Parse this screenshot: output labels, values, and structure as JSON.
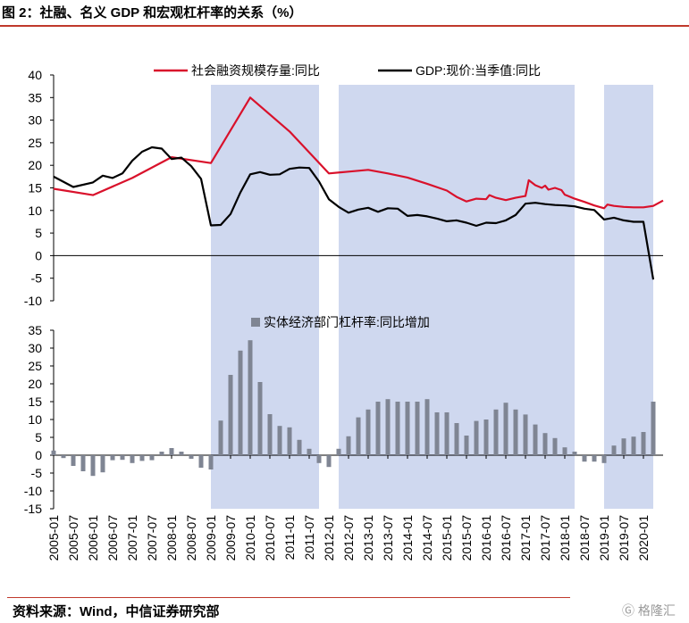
{
  "header": {
    "title": "图 2：社融、名义 GDP 和宏观杠杆率的关系（%）"
  },
  "footer": {
    "source": "资料来源：Wind，中信证券研究部",
    "watermark": "格隆汇"
  },
  "chart_data": [
    {
      "type": "line",
      "title": "",
      "ylim": [
        -10,
        40
      ],
      "yticks": [
        40,
        35,
        30,
        25,
        20,
        15,
        10,
        5,
        0,
        -5,
        -10
      ],
      "ytick_labels": [
        "40",
        "35",
        "30",
        "25",
        "20",
        "15",
        "10",
        "5",
        "0",
        "-5",
        "-10"
      ],
      "x_range": [
        "2005-01",
        "2020-07"
      ],
      "shaded_periods": [
        [
          "2009-01",
          "2011-10"
        ],
        [
          "2012-04",
          "2018-04"
        ],
        [
          "2019-01",
          "2020-04"
        ]
      ],
      "legend_position": "top",
      "series": [
        {
          "name": "社会融资规模存量:同比",
          "color": "#d9112b",
          "points": [
            [
              "2005-01",
              14.8
            ],
            [
              "2006-01",
              13.4
            ],
            [
              "2007-01",
              17.2
            ],
            [
              "2008-01",
              21.8
            ],
            [
              "2009-01",
              20.5
            ],
            [
              "2010-01",
              35.0
            ],
            [
              "2011-01",
              27.5
            ],
            [
              "2012-01",
              18.2
            ],
            [
              "2012-07",
              18.6
            ],
            [
              "2013-01",
              19.0
            ],
            [
              "2013-07",
              18.2
            ],
            [
              "2014-01",
              17.3
            ],
            [
              "2014-07",
              15.9
            ],
            [
              "2015-01",
              14.4
            ],
            [
              "2015-04",
              13.0
            ],
            [
              "2015-07",
              12.0
            ],
            [
              "2015-10",
              12.6
            ],
            [
              "2016-01",
              12.5
            ],
            [
              "2016-02",
              13.4
            ],
            [
              "2016-04",
              12.8
            ],
            [
              "2016-07",
              12.3
            ],
            [
              "2016-10",
              12.8
            ],
            [
              "2017-01",
              13.2
            ],
            [
              "2017-02",
              16.7
            ],
            [
              "2017-04",
              15.6
            ],
            [
              "2017-06",
              15.0
            ],
            [
              "2017-07",
              15.5
            ],
            [
              "2017-08",
              14.6
            ],
            [
              "2017-10",
              15.0
            ],
            [
              "2017-12",
              14.5
            ],
            [
              "2018-01",
              13.5
            ],
            [
              "2018-04",
              12.6
            ],
            [
              "2018-07",
              11.9
            ],
            [
              "2018-10",
              11.1
            ],
            [
              "2019-01",
              10.5
            ],
            [
              "2019-02",
              11.3
            ],
            [
              "2019-04",
              11.0
            ],
            [
              "2019-07",
              10.8
            ],
            [
              "2019-10",
              10.7
            ],
            [
              "2020-01",
              10.7
            ],
            [
              "2020-04",
              11.0
            ],
            [
              "2020-07",
              12.2
            ]
          ]
        },
        {
          "name": "GDP:现价:当季值:同比",
          "color": "#000000",
          "points": [
            [
              "2005-01",
              17.5
            ],
            [
              "2005-07",
              15.2
            ],
            [
              "2006-01",
              16.2
            ],
            [
              "2006-04",
              17.7
            ],
            [
              "2006-07",
              17.2
            ],
            [
              "2006-10",
              18.2
            ],
            [
              "2007-01",
              21.0
            ],
            [
              "2007-04",
              23.0
            ],
            [
              "2007-07",
              24.0
            ],
            [
              "2007-10",
              23.7
            ],
            [
              "2008-01",
              21.4
            ],
            [
              "2008-04",
              21.7
            ],
            [
              "2008-07",
              19.8
            ],
            [
              "2008-10",
              17.0
            ],
            [
              "2009-01",
              6.7
            ],
            [
              "2009-04",
              6.8
            ],
            [
              "2009-07",
              9.2
            ],
            [
              "2009-10",
              14.0
            ],
            [
              "2010-01",
              18.0
            ],
            [
              "2010-04",
              18.5
            ],
            [
              "2010-07",
              17.9
            ],
            [
              "2010-10",
              18.0
            ],
            [
              "2011-01",
              19.2
            ],
            [
              "2011-04",
              19.5
            ],
            [
              "2011-07",
              19.4
            ],
            [
              "2011-10",
              16.4
            ],
            [
              "2012-01",
              12.5
            ],
            [
              "2012-04",
              10.8
            ],
            [
              "2012-07",
              9.5
            ],
            [
              "2012-10",
              10.2
            ],
            [
              "2013-01",
              10.6
            ],
            [
              "2013-04",
              9.7
            ],
            [
              "2013-07",
              10.5
            ],
            [
              "2013-10",
              10.4
            ],
            [
              "2014-01",
              8.8
            ],
            [
              "2014-04",
              9.0
            ],
            [
              "2014-07",
              8.7
            ],
            [
              "2014-10",
              8.2
            ],
            [
              "2015-01",
              7.6
            ],
            [
              "2015-04",
              7.8
            ],
            [
              "2015-07",
              7.3
            ],
            [
              "2015-10",
              6.6
            ],
            [
              "2016-01",
              7.3
            ],
            [
              "2016-04",
              7.2
            ],
            [
              "2016-07",
              7.8
            ],
            [
              "2016-10",
              9.0
            ],
            [
              "2017-01",
              11.5
            ],
            [
              "2017-04",
              11.7
            ],
            [
              "2017-07",
              11.4
            ],
            [
              "2017-10",
              11.2
            ],
            [
              "2018-01",
              11.1
            ],
            [
              "2018-04",
              10.9
            ],
            [
              "2018-07",
              10.4
            ],
            [
              "2018-10",
              10.1
            ],
            [
              "2019-01",
              8.0
            ],
            [
              "2019-04",
              8.4
            ],
            [
              "2019-07",
              7.8
            ],
            [
              "2019-10",
              7.5
            ],
            [
              "2020-01",
              7.5
            ],
            [
              "2020-04",
              -5.3
            ]
          ]
        }
      ]
    },
    {
      "type": "bar",
      "title": "",
      "ylim": [
        -15,
        35
      ],
      "yticks": [
        35,
        30,
        25,
        20,
        15,
        10,
        5,
        0,
        -5,
        -10,
        -15
      ],
      "ytick_labels": [
        "35",
        "30",
        "25",
        "20",
        "15",
        "10",
        "5",
        "0",
        "-5",
        "-10",
        "-15"
      ],
      "categories": [
        "2005-01",
        "2005-04",
        "2005-07",
        "2005-10",
        "2006-01",
        "2006-04",
        "2006-07",
        "2006-10",
        "2007-01",
        "2007-04",
        "2007-07",
        "2007-10",
        "2008-01",
        "2008-04",
        "2008-07",
        "2008-10",
        "2009-01",
        "2009-04",
        "2009-07",
        "2009-10",
        "2010-01",
        "2010-04",
        "2010-07",
        "2010-10",
        "2011-01",
        "2011-04",
        "2011-07",
        "2011-10",
        "2012-01",
        "2012-04",
        "2012-07",
        "2012-10",
        "2013-01",
        "2013-04",
        "2013-07",
        "2013-10",
        "2014-01",
        "2014-04",
        "2014-07",
        "2014-10",
        "2015-01",
        "2015-04",
        "2015-07",
        "2015-10",
        "2016-01",
        "2016-04",
        "2016-07",
        "2016-10",
        "2017-01",
        "2017-04",
        "2017-07",
        "2017-10",
        "2018-01",
        "2018-04",
        "2018-07",
        "2018-10",
        "2019-01",
        "2019-04",
        "2019-07",
        "2019-10",
        "2020-01",
        "2020-04"
      ],
      "x_tick_labels": [
        "2005-01",
        "2005-07",
        "2006-01",
        "2006-07",
        "2007-01",
        "2007-07",
        "2008-01",
        "2008-07",
        "2009-01",
        "2009-07",
        "2010-01",
        "2010-07",
        "2011-01",
        "2011-07",
        "2012-01",
        "2012-07",
        "2013-01",
        "2013-07",
        "2014-01",
        "2014-07",
        "2015-01",
        "2015-07",
        "2016-01",
        "2016-07",
        "2017-01",
        "2017-07",
        "2018-01",
        "2018-07",
        "2019-01",
        "2019-07",
        "2020-01"
      ],
      "series": [
        {
          "name": "实体经济部门杠杆率:同比增加",
          "color": "#7f8593",
          "values": [
            1.3,
            -0.8,
            -3.0,
            -4.5,
            -5.8,
            -4.8,
            -1.4,
            -1.3,
            -2.2,
            -1.6,
            -1.4,
            1.0,
            2.0,
            1.0,
            -1.0,
            -3.5,
            -4.0,
            9.7,
            22.5,
            29.3,
            32.2,
            20.5,
            11.5,
            8.2,
            7.8,
            4.3,
            1.8,
            -2.2,
            -3.3,
            1.8,
            5.3,
            10.6,
            12.8,
            15.0,
            15.7,
            15.0,
            15.0,
            15.0,
            15.7,
            12.0,
            12.0,
            9.0,
            5.5,
            9.6,
            10.0,
            12.8,
            14.7,
            12.8,
            11.4,
            8.6,
            6.2,
            4.8,
            2.2,
            1.0,
            -1.8,
            -1.8,
            -2.2,
            2.7,
            4.7,
            5.2,
            6.5,
            15.0
          ]
        }
      ]
    }
  ]
}
